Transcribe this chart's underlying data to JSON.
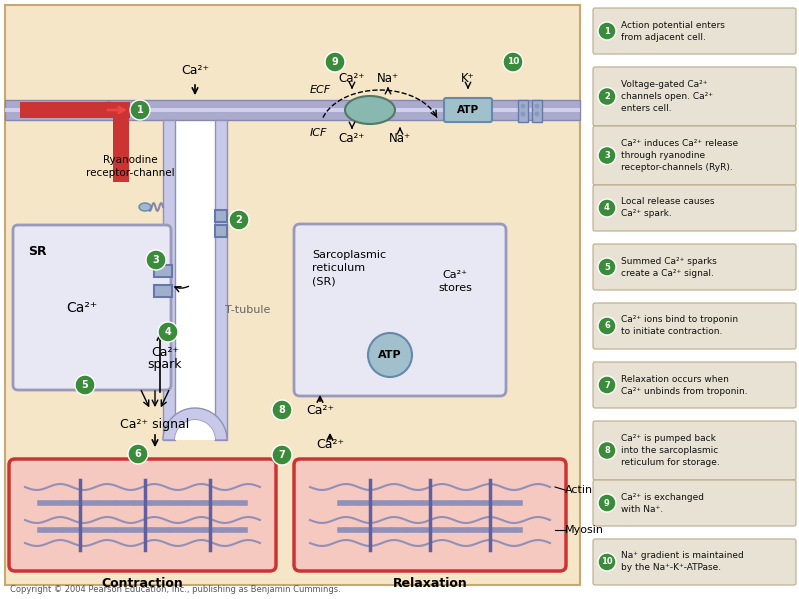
{
  "bg_main": "#f5e6c8",
  "bg_white": "#ffffff",
  "membrane_color": "#aaaacc",
  "membrane_edge": "#8888aa",
  "sr_fill": "#e8e8f5",
  "sr_edge": "#9999bb",
  "red_fill": "#cc3333",
  "pink_fill": "#f5c8c0",
  "tubule_fill": "#c8c8e8",
  "tubule_edge": "#9090b8",
  "green_btn": "#3a8c3a",
  "teal_oval": "#88b8b0",
  "atp_fill": "#a0c0cc",
  "channel_fill": "#a0b0cc",
  "copyright": "Copyright © 2004 Pearson Education, Inc., publishing as Benjamin Cummings.",
  "steps": [
    {
      "num": "1",
      "lines": [
        "Action potential enters",
        "from adjacent cell."
      ]
    },
    {
      "num": "2",
      "lines": [
        "Voltage-gated Ca²⁺",
        "channels open. Ca²⁺",
        "enters cell."
      ]
    },
    {
      "num": "3",
      "lines": [
        "Ca²⁺ induces Ca²⁺ release",
        "through ryanodine",
        "receptor-channels (RyR)."
      ]
    },
    {
      "num": "4",
      "lines": [
        "Local release causes",
        "Ca²⁺ spark."
      ]
    },
    {
      "num": "5",
      "lines": [
        "Summed Ca²⁺ sparks",
        "create a Ca²⁺ signal."
      ]
    },
    {
      "num": "6",
      "lines": [
        "Ca²⁺ ions bind to troponin",
        "to initiate contraction."
      ]
    },
    {
      "num": "7",
      "lines": [
        "Relaxation occurs when",
        "Ca²⁺ unbinds from troponin."
      ]
    },
    {
      "num": "8",
      "lines": [
        "Ca²⁺ is pumped back",
        "into the sarcoplasmic",
        "reticulum for storage."
      ]
    },
    {
      "num": "9",
      "lines": [
        "Ca²⁺ is exchanged",
        "with Na⁺."
      ]
    },
    {
      "num": "10",
      "lines": [
        "Na⁺ gradient is maintained",
        "by the Na⁺-K⁺-ATPase."
      ]
    }
  ]
}
